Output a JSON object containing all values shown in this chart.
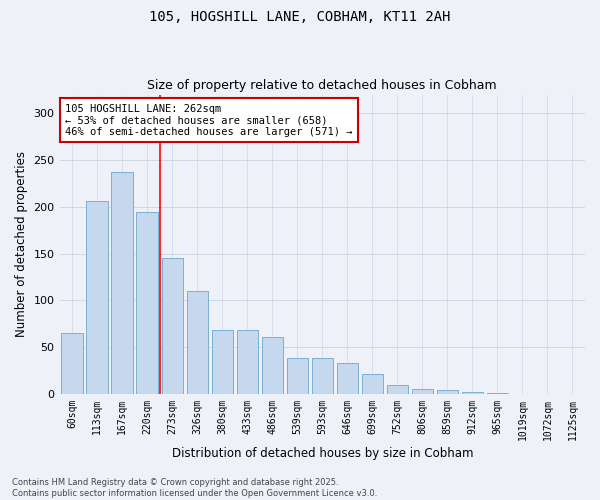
{
  "title1": "105, HOGSHILL LANE, COBHAM, KT11 2AH",
  "title2": "Size of property relative to detached houses in Cobham",
  "xlabel": "Distribution of detached houses by size in Cobham",
  "ylabel": "Number of detached properties",
  "categories": [
    "60sqm",
    "113sqm",
    "167sqm",
    "220sqm",
    "273sqm",
    "326sqm",
    "380sqm",
    "433sqm",
    "486sqm",
    "539sqm",
    "593sqm",
    "646sqm",
    "699sqm",
    "752sqm",
    "806sqm",
    "859sqm",
    "912sqm",
    "965sqm",
    "1019sqm",
    "1072sqm",
    "1125sqm"
  ],
  "values": [
    65,
    206,
    237,
    194,
    145,
    110,
    68,
    68,
    61,
    39,
    39,
    33,
    21,
    10,
    5,
    4,
    2,
    1,
    0,
    0,
    0
  ],
  "bar_color": "#c5d8ed",
  "bar_edge_color": "#7aafd4",
  "grid_color": "#d0d8e4",
  "bg_color": "#eef2f8",
  "annotation_text": "105 HOGSHILL LANE: 262sqm\n← 53% of detached houses are smaller (658)\n46% of semi-detached houses are larger (571) →",
  "annotation_box_color": "#ffffff",
  "annotation_box_edge": "#cc0000",
  "red_line_idx": 3.5,
  "footnote": "Contains HM Land Registry data © Crown copyright and database right 2025.\nContains public sector information licensed under the Open Government Licence v3.0.",
  "ylim": [
    0,
    320
  ],
  "yticks": [
    0,
    50,
    100,
    150,
    200,
    250,
    300
  ],
  "title_fontsize": 10,
  "subtitle_fontsize": 9,
  "tick_fontsize": 7,
  "ylabel_fontsize": 8.5,
  "xlabel_fontsize": 8.5,
  "annot_fontsize": 7.5,
  "footnote_fontsize": 6
}
